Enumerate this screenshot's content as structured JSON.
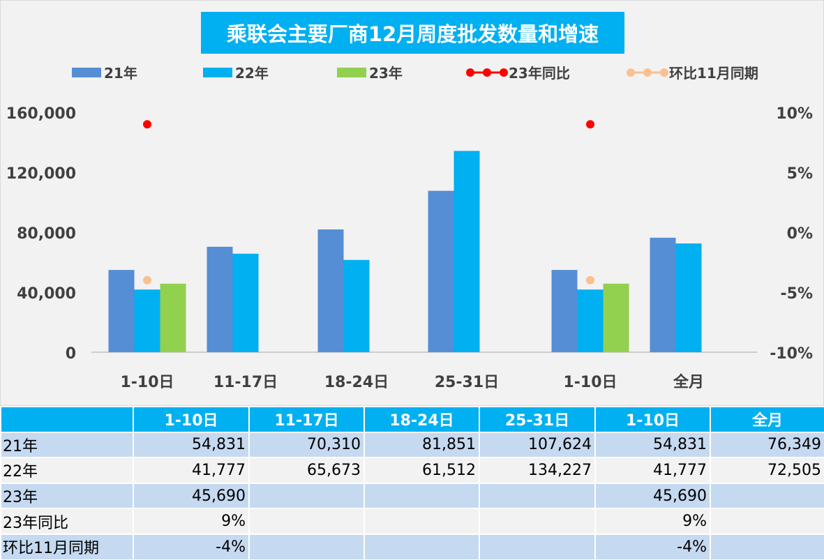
{
  "chart_data": {
    "type": "bar",
    "title": "乘联会主要厂商12月周度批发数量和增速",
    "categories": [
      "1-10日",
      "11-17日",
      "18-24日",
      "25-31日",
      "1-10日",
      "全月"
    ],
    "series": [
      {
        "name": "21年",
        "type": "bar",
        "color": "#558ed5",
        "values": [
          54831,
          70310,
          81851,
          107624,
          54831,
          76349
        ]
      },
      {
        "name": "22年",
        "type": "bar",
        "color": "#00b0f0",
        "values": [
          41777,
          65673,
          61512,
          134227,
          41777,
          72505
        ]
      },
      {
        "name": "23年",
        "type": "bar",
        "color": "#92d050",
        "values": [
          45690,
          null,
          null,
          null,
          45690,
          null
        ]
      },
      {
        "name": "23年同比",
        "type": "line",
        "axis": "right",
        "color": "#ff0000",
        "values": [
          0.09,
          null,
          null,
          null,
          0.09,
          null
        ]
      },
      {
        "name": "环比11月同期",
        "type": "line",
        "axis": "right",
        "color": "#fac090",
        "values": [
          -0.04,
          null,
          null,
          null,
          -0.04,
          null
        ]
      }
    ],
    "y_left": {
      "min": 0,
      "max": 160000,
      "ticks": [
        0,
        40000,
        80000,
        120000,
        160000
      ],
      "tick_labels": [
        "0",
        "40,000",
        "80,000",
        "120,000",
        "160,000"
      ]
    },
    "y_right": {
      "min": -0.1,
      "max": 0.1,
      "ticks": [
        -0.1,
        -0.05,
        0,
        0.05,
        0.1
      ],
      "tick_labels": [
        "-10%",
        "-5%",
        "0%",
        "5%",
        "10%"
      ]
    },
    "legend_position": "top",
    "grid": false
  },
  "table": {
    "headers": [
      "",
      "1-10日",
      "11-17日",
      "18-24日",
      "25-31日",
      "1-10日",
      "全月"
    ],
    "rows": [
      {
        "label": "21年",
        "cells": [
          "54,831",
          "70,310",
          "81,851",
          "107,624",
          "54,831",
          "76,349"
        ]
      },
      {
        "label": "22年",
        "cells": [
          "41,777",
          "65,673",
          "61,512",
          "134,227",
          "41,777",
          "72,505"
        ]
      },
      {
        "label": "23年",
        "cells": [
          "45,690",
          "",
          "",
          "",
          "45,690",
          ""
        ]
      },
      {
        "label": "23年同比",
        "cells": [
          "9%",
          "",
          "",
          "",
          "9%",
          ""
        ]
      },
      {
        "label": "环比11月同期",
        "cells": [
          "-4%",
          "",
          "",
          "",
          "-4%",
          ""
        ]
      }
    ]
  }
}
